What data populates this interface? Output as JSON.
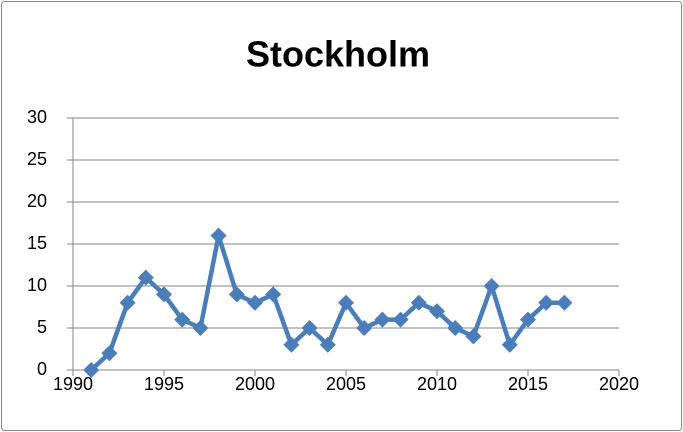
{
  "chart_data": {
    "type": "line",
    "title": "Stockholm",
    "x": [
      1991,
      1992,
      1993,
      1994,
      1995,
      1996,
      1997,
      1998,
      1999,
      2000,
      2001,
      2002,
      2003,
      2004,
      2005,
      2006,
      2007,
      2008,
      2009,
      2010,
      2011,
      2012,
      2013,
      2014,
      2015,
      2016,
      2017
    ],
    "values": [
      0,
      2,
      8,
      11,
      9,
      6,
      5,
      16,
      9,
      8,
      9,
      3,
      5,
      3,
      8,
      5,
      6,
      6,
      8,
      7,
      5,
      4,
      10,
      3,
      6,
      8,
      8
    ],
    "color": "#4a7ebb",
    "xlim": [
      1990,
      2020
    ],
    "xticks": [
      1990,
      1995,
      2000,
      2005,
      2010,
      2015,
      2020
    ],
    "ylim": [
      0,
      30
    ],
    "yticks": [
      0,
      5,
      10,
      15,
      20,
      25,
      30
    ],
    "grid": true,
    "marker": "diamond"
  }
}
